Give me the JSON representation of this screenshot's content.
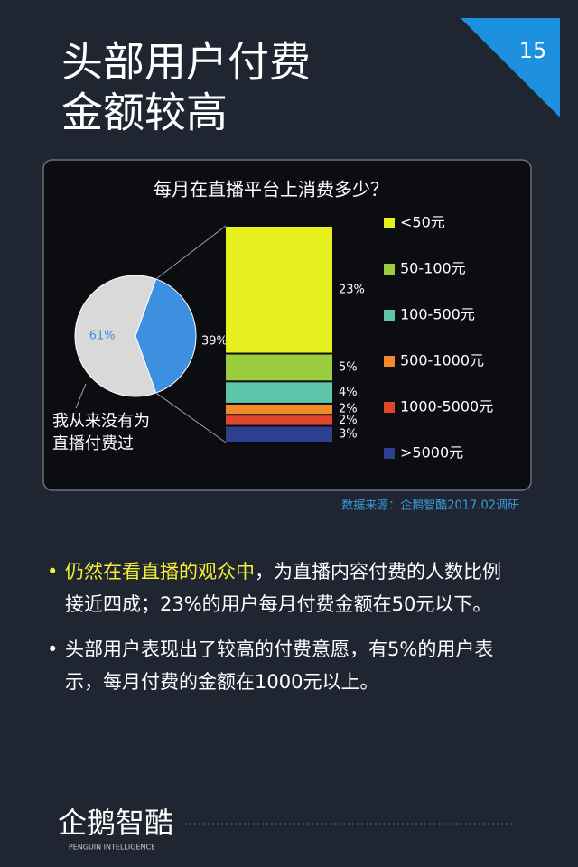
{
  "page_number": "15",
  "title": [
    "头部用户付费",
    "金额较高"
  ],
  "chart_data": {
    "type": "pie",
    "title": "每月在直播平台上消费多少？",
    "pie": {
      "values": [
        61,
        39
      ],
      "value_labels": [
        "61%",
        "39%"
      ],
      "colors": [
        "#d9d9d9",
        "#3d8fe0"
      ]
    },
    "annotation": [
      "我从来没有为",
      "直播付费过"
    ],
    "breakdown": {
      "categories": [
        "<50元",
        "50-100元",
        "100-500元",
        "500-1000元",
        "1000-5000元",
        ">5000元"
      ],
      "values": [
        23,
        5,
        4,
        2,
        2,
        3
      ],
      "value_labels": [
        "23%",
        "5%",
        "4%",
        "2%",
        "2%",
        "3%"
      ],
      "colors": [
        "#e6f01e",
        "#9ccd3e",
        "#5cc5aa",
        "#f28a2c",
        "#e2472e",
        "#2d3f8e"
      ]
    },
    "source": "数据来源：企鹅智酷2017.02调研"
  },
  "bullets": [
    {
      "highlight": "仍然在看直播的观众中",
      "lines": [
        "，为直播内容付费的人数比例",
        "接近四成；23%的用户每月付费金额在50元以下。"
      ]
    },
    {
      "lines": [
        "头部用户表现出了较高的付费意愿，有5%的用户表",
        "示，每月付费的金额在1000元以上。"
      ]
    }
  ],
  "bullet_mark": "•",
  "logo": {
    "name": "企鹅智酷",
    "subtitle": "PENGUIN INTELLIGENCE"
  }
}
